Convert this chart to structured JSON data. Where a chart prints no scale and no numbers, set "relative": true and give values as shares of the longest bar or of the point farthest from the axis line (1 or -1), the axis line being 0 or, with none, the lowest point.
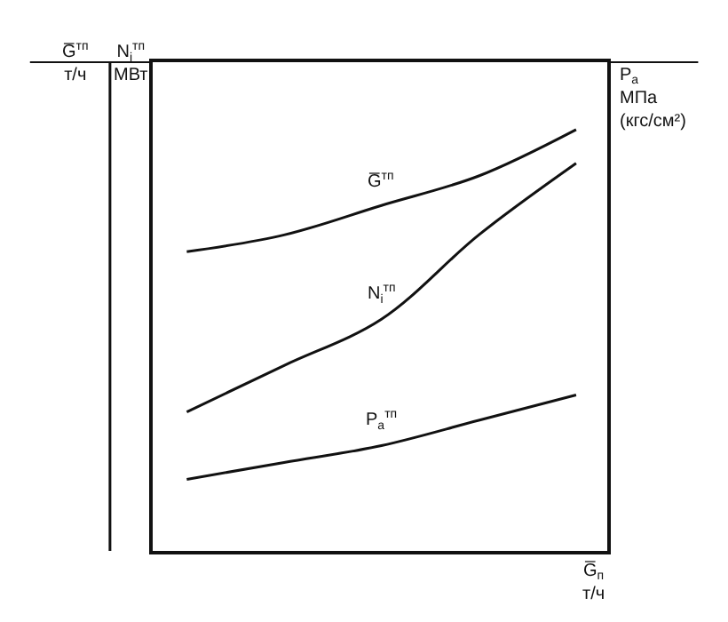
{
  "chart_data": {
    "type": "line",
    "relative": true,
    "categories": [
      null,
      null,
      null,
      null,
      null
    ],
    "series": [
      {
        "name": "G̅$^{тп}$",
        "color": "#111111",
        "values": [
          0.71,
          0.75,
          0.82,
          0.89,
          1.0
        ]
      },
      {
        "name": "N$_{i}$$^{тп}$",
        "color": "#111111",
        "values": [
          0.33,
          0.44,
          0.55,
          0.75,
          0.92
        ]
      },
      {
        "name": "P$_{a}$$^{тп}$",
        "color": "#111111",
        "values": [
          0.17,
          0.21,
          0.25,
          0.31,
          0.37
        ]
      }
    ],
    "ylabel": "G̅$^{тп}$\nт/ч",
    "y2label": "P$_{a}$\nМПа\n(кгс/см²)",
    "xlabel": "G̅$_{п}$\nт/ч",
    "annotations": [
      "N$_{i}$$^{тп}$\nМВт"
    ],
    "marker": "none",
    "line_style": "solid",
    "legend": false
  }
}
